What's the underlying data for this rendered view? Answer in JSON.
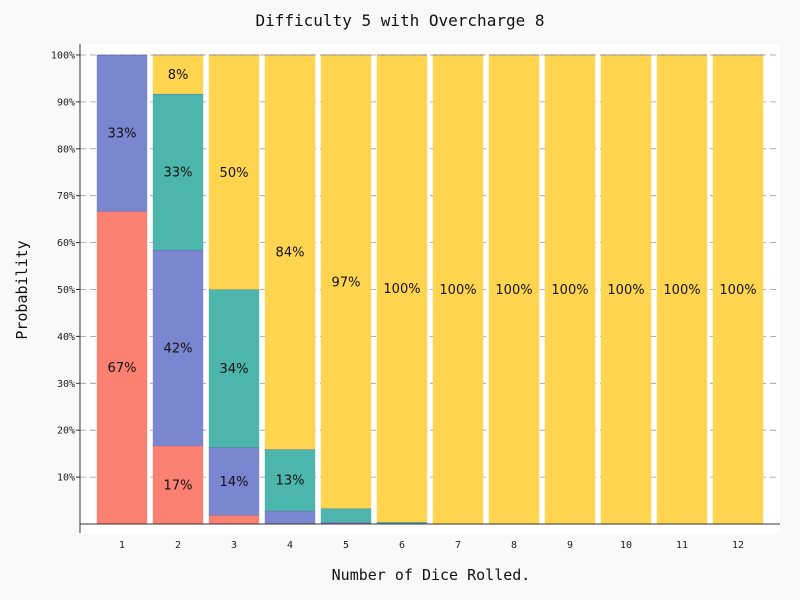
{
  "chart_data": {
    "type": "bar",
    "stacked": true,
    "title": "Difficulty 5 with Overcharge 8",
    "xlabel": "Number of Dice Rolled.",
    "ylabel": "Probability",
    "categories": [
      "1",
      "2",
      "3",
      "4",
      "5",
      "6",
      "7",
      "8",
      "9",
      "10",
      "11",
      "12"
    ],
    "ylim": [
      0,
      100
    ],
    "yticks": [
      "10%",
      "20%",
      "30%",
      "40%",
      "50%",
      "60%",
      "70%",
      "80%",
      "90%",
      "100%"
    ],
    "grid": "horizontal dashed",
    "legend": "none",
    "series": [
      {
        "color": "#fa8072",
        "values": [
          66.7,
          16.7,
          1.9,
          0,
          0,
          0,
          0,
          0,
          0,
          0,
          0,
          0
        ],
        "labels": [
          "67%",
          "17%",
          "",
          "",
          "",
          "",
          "",
          "",
          "",
          "",
          "",
          ""
        ]
      },
      {
        "color": "#7b86d0",
        "values": [
          33.3,
          41.7,
          14.4,
          2.8,
          0.4,
          0,
          0,
          0,
          0,
          0,
          0,
          0
        ],
        "labels": [
          "33%",
          "42%",
          "14%",
          "",
          "",
          "",
          "",
          "",
          "",
          "",
          "",
          ""
        ]
      },
      {
        "color": "#4db6ac",
        "values": [
          0,
          33.3,
          33.7,
          13.1,
          2.9,
          0.4,
          0.1,
          0,
          0,
          0,
          0,
          0
        ],
        "labels": [
          "",
          "33%",
          "34%",
          "13%",
          "",
          "",
          "",
          "",
          "",
          "",
          "",
          ""
        ]
      },
      {
        "color": "#ffd54f",
        "values": [
          0,
          8.3,
          50.0,
          84.1,
          96.7,
          99.6,
          99.9,
          100,
          100,
          100,
          100,
          100
        ],
        "labels": [
          "",
          "8%",
          "50%",
          "84%",
          "97%",
          "100%",
          "100%",
          "100%",
          "100%",
          "100%",
          "100%",
          "100%"
        ]
      }
    ]
  }
}
